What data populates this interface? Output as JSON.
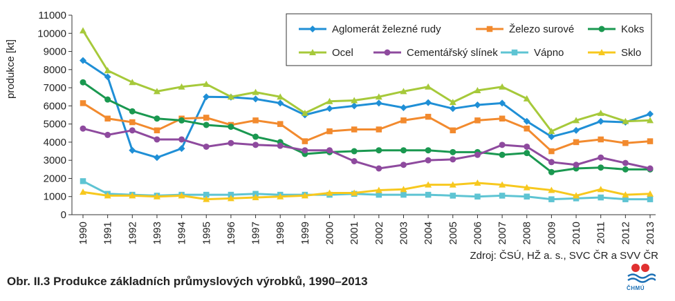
{
  "caption": "Obr. II.3  Produkce základních průmyslových výrobků, 1990–2013",
  "source": "Zdroj: ČSÚ, HŽ a. s., SVC ČR a SVV ČR",
  "logo_text": "ČHMÚ",
  "chart_data": {
    "type": "line",
    "ylabel": "produkce [kt]",
    "ylim": [
      0,
      11000
    ],
    "ytick_step": 1000,
    "grid": false,
    "legend_position": "top-right",
    "x": [
      "1990",
      "1991",
      "1992",
      "1993",
      "1994",
      "1995",
      "1996",
      "1997",
      "1998",
      "1999",
      "2000",
      "2001",
      "2002",
      "2003",
      "2004",
      "2005",
      "2006",
      "2007",
      "2008",
      "2009",
      "2010",
      "2011",
      "2012",
      "2013"
    ],
    "series": [
      {
        "name": "Aglomerát železné rudy",
        "color": "#1f8fd6",
        "marker": "diamond",
        "values": [
          8500,
          7600,
          3550,
          3150,
          3650,
          6500,
          6480,
          6380,
          6150,
          5500,
          5850,
          6000,
          6150,
          5900,
          6180,
          5850,
          6050,
          6150,
          5150,
          4300,
          4650,
          5150,
          5100,
          5550
        ]
      },
      {
        "name": "Železo surové",
        "color": "#f28a2e",
        "marker": "square",
        "values": [
          6150,
          5300,
          5100,
          4650,
          5300,
          5350,
          4950,
          5200,
          5000,
          4050,
          4600,
          4700,
          4700,
          5200,
          5400,
          4650,
          5200,
          5300,
          4750,
          3500,
          4000,
          4150,
          3950,
          4050
        ]
      },
      {
        "name": "Koks",
        "color": "#1a9850",
        "marker": "circle",
        "values": [
          7300,
          6350,
          5700,
          5300,
          5200,
          4950,
          4850,
          4300,
          4000,
          3350,
          3450,
          3500,
          3550,
          3550,
          3550,
          3450,
          3450,
          3300,
          3400,
          2350,
          2550,
          2600,
          2500,
          2500
        ]
      },
      {
        "name": "Ocel",
        "color": "#a6c93a",
        "marker": "triangle",
        "values": [
          10150,
          7950,
          7300,
          6800,
          7050,
          7200,
          6500,
          6750,
          6500,
          5600,
          6250,
          6300,
          6500,
          6800,
          7050,
          6200,
          6850,
          7050,
          6400,
          4600,
          5200,
          5600,
          5150,
          5200
        ]
      },
      {
        "name": "Cementářský slínek",
        "color": "#8e4a9e",
        "marker": "circle",
        "values": [
          4750,
          4400,
          4650,
          4150,
          4150,
          3750,
          3950,
          3850,
          3800,
          3550,
          3550,
          2950,
          2550,
          2750,
          3000,
          3050,
          3300,
          3850,
          3750,
          2900,
          2750,
          3150,
          2850,
          2550
        ]
      },
      {
        "name": "Vápno",
        "color": "#5ec4d3",
        "marker": "square",
        "values": [
          1850,
          1150,
          1100,
          1050,
          1100,
          1100,
          1100,
          1150,
          1100,
          1100,
          1100,
          1150,
          1100,
          1100,
          1100,
          1050,
          1000,
          1050,
          1000,
          850,
          900,
          950,
          850,
          850
        ]
      },
      {
        "name": "Sklo",
        "color": "#f7c81e",
        "marker": "triangle",
        "values": [
          1250,
          1050,
          1050,
          1000,
          1050,
          850,
          900,
          950,
          1000,
          1050,
          1200,
          1200,
          1350,
          1400,
          1650,
          1650,
          1750,
          1650,
          1500,
          1350,
          1050,
          1400,
          1100,
          1150
        ]
      }
    ]
  }
}
